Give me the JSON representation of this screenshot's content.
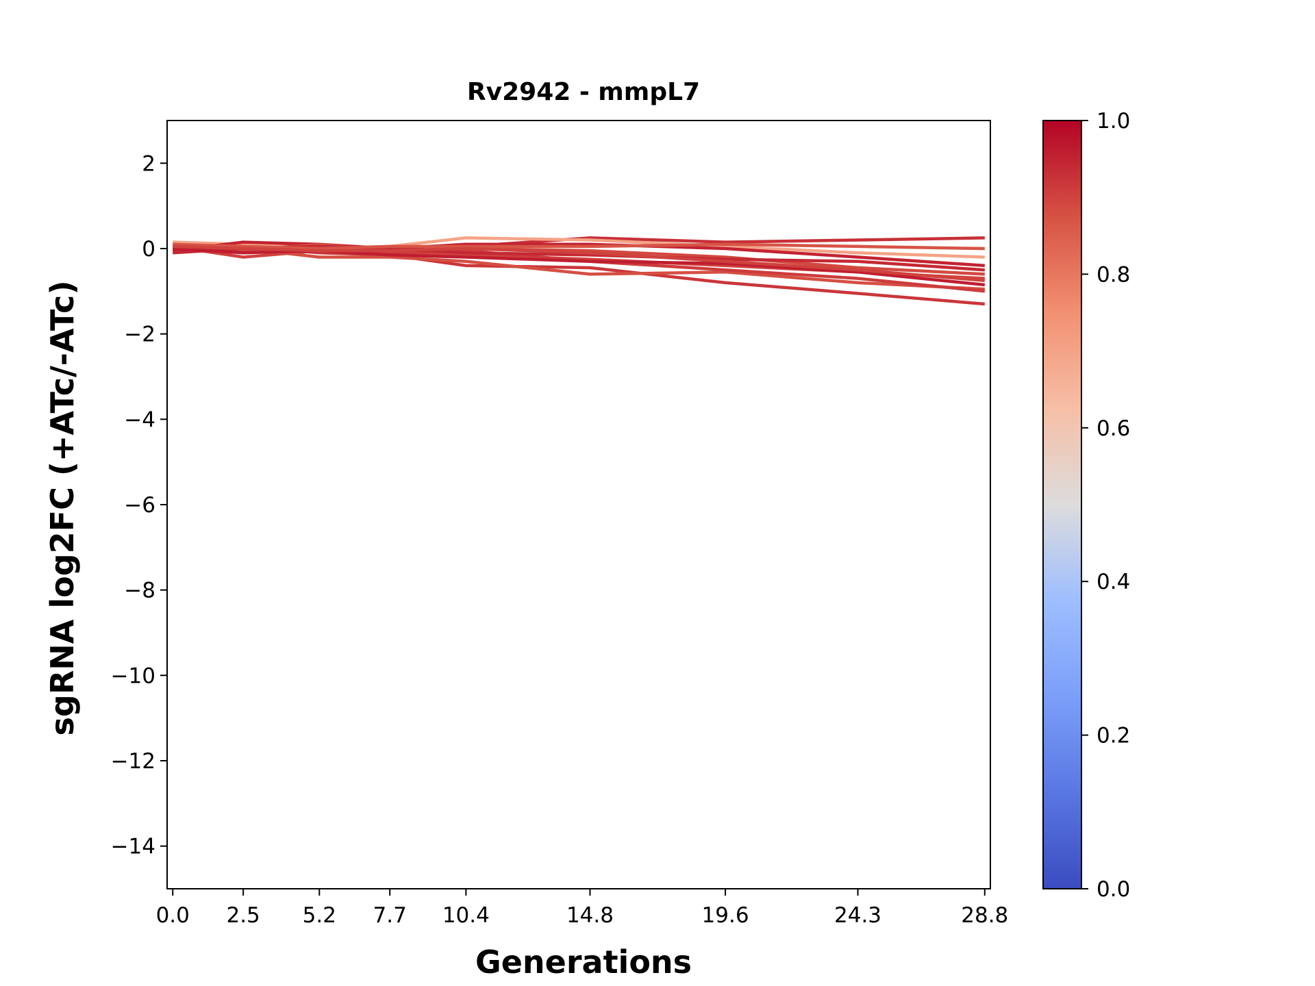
{
  "chart_data": {
    "type": "line",
    "title": "Rv2942 - mmpL7",
    "xlabel": "Generations",
    "ylabel": "sgRNA log2FC (+ATc/-ATc)",
    "x": [
      0.0,
      2.5,
      5.2,
      7.7,
      10.4,
      14.8,
      19.6,
      24.3,
      28.8
    ],
    "x_tick_labels": [
      "0.0",
      "2.5",
      "5.2",
      "7.7",
      "10.4",
      "14.8",
      "19.6",
      "24.3",
      "28.8"
    ],
    "xlim": [
      -0.2,
      29.0
    ],
    "ylim": [
      -15,
      3
    ],
    "y_ticks": [
      2,
      0,
      -2,
      -4,
      -6,
      -8,
      -10,
      -12,
      -14
    ],
    "y_tick_labels": [
      "2",
      "0",
      "−2",
      "−4",
      "−6",
      "−8",
      "−10",
      "−12",
      "−14"
    ],
    "grid": false,
    "colormap": {
      "name": "coolwarm",
      "range": [
        0.0,
        1.0
      ],
      "ticks": [
        0.0,
        0.2,
        0.4,
        0.6,
        0.8,
        1.0
      ],
      "tick_labels": [
        "0.0",
        "0.2",
        "0.4",
        "0.6",
        "0.8",
        "1.0"
      ],
      "stops": [
        {
          "v": 0.0,
          "color": "#3b4cc0"
        },
        {
          "v": 0.125,
          "color": "#5977e3"
        },
        {
          "v": 0.25,
          "color": "#7b9ff9"
        },
        {
          "v": 0.375,
          "color": "#9ebeff"
        },
        {
          "v": 0.5,
          "color": "#dddcdc"
        },
        {
          "v": 0.625,
          "color": "#f6bfa6"
        },
        {
          "v": 0.75,
          "color": "#f29072"
        },
        {
          "v": 0.875,
          "color": "#d65244"
        },
        {
          "v": 1.0,
          "color": "#b40426"
        }
      ]
    },
    "series": [
      {
        "color_value": 0.9,
        "values": [
          0.05,
          -0.2,
          -0.05,
          -0.1,
          -0.15,
          -0.25,
          -0.4,
          -0.55,
          -0.7
        ]
      },
      {
        "color_value": 0.92,
        "values": [
          0.0,
          0.05,
          -0.1,
          -0.15,
          -0.4,
          -0.45,
          -0.8,
          -1.05,
          -1.3
        ]
      },
      {
        "color_value": 0.88,
        "values": [
          0.1,
          0.0,
          -0.2,
          -0.2,
          -0.3,
          -0.6,
          -0.55,
          -0.8,
          -0.95
        ]
      },
      {
        "color_value": 0.93,
        "values": [
          0.0,
          0.1,
          0.05,
          -0.1,
          0.05,
          0.25,
          0.15,
          0.2,
          0.25
        ]
      },
      {
        "color_value": 0.7,
        "values": [
          0.15,
          0.1,
          0.0,
          0.05,
          0.25,
          0.2,
          0.05,
          -0.1,
          -0.2
        ]
      },
      {
        "color_value": 0.95,
        "values": [
          -0.05,
          0.15,
          0.1,
          0.0,
          0.1,
          0.1,
          0.0,
          -0.2,
          -0.4
        ]
      },
      {
        "color_value": 0.91,
        "values": [
          0.05,
          0.0,
          -0.05,
          -0.1,
          -0.05,
          -0.3,
          -0.5,
          -0.7,
          -1.0
        ]
      },
      {
        "color_value": 0.89,
        "values": [
          0.0,
          -0.05,
          0.1,
          -0.05,
          0.0,
          -0.05,
          -0.2,
          -0.45,
          -0.6
        ]
      },
      {
        "color_value": 0.94,
        "values": [
          -0.1,
          0.0,
          0.05,
          0.0,
          -0.1,
          -0.15,
          -0.25,
          -0.3,
          -0.5
        ]
      },
      {
        "color_value": 0.87,
        "values": [
          0.1,
          0.05,
          0.0,
          0.05,
          0.05,
          0.05,
          0.1,
          0.05,
          0.0
        ]
      },
      {
        "color_value": 0.96,
        "values": [
          0.0,
          -0.1,
          -0.05,
          -0.15,
          -0.2,
          -0.3,
          -0.35,
          -0.55,
          -0.85
        ]
      },
      {
        "color_value": 0.9,
        "values": [
          0.05,
          0.0,
          -0.05,
          -0.05,
          0.0,
          -0.1,
          -0.3,
          -0.5,
          -0.75
        ]
      }
    ]
  }
}
